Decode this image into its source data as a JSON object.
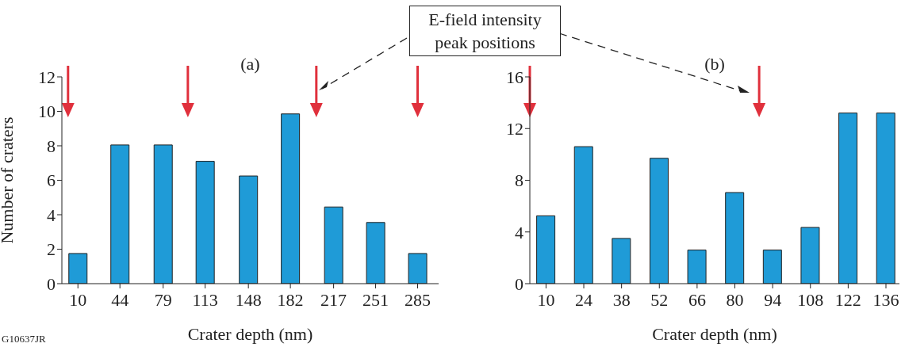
{
  "chart_data": [
    {
      "type": "bar",
      "title": "(a)",
      "xlabel": "Crater depth (nm)",
      "ylabel": "Number of craters",
      "x": [
        10,
        44,
        79,
        113,
        148,
        182,
        217,
        251,
        285
      ],
      "values": [
        1.75,
        8.05,
        8.05,
        7.1,
        6.25,
        9.85,
        4.45,
        3.55,
        1.75
      ],
      "color": "#1f9bd7",
      "xlim": [
        -3,
        302
      ],
      "xticks": [
        10,
        44,
        79,
        113,
        148,
        182,
        217,
        251,
        285
      ],
      "ylim": [
        0,
        12
      ],
      "yticks": [
        0,
        2,
        4,
        6,
        8,
        10,
        12
      ],
      "grid": false,
      "legend": false,
      "ref_lines": [
        {
          "axis": "x",
          "value": 2,
          "color": "#e0303c"
        },
        {
          "axis": "x",
          "value": 99,
          "color": "#e0303c"
        },
        {
          "axis": "x",
          "value": 203,
          "color": "#e0303c"
        },
        {
          "axis": "x",
          "value": 285,
          "color": "#e0303c"
        }
      ],
      "annotations": [
        "E-field intensity peak positions",
        "G10637JR"
      ]
    },
    {
      "type": "bar",
      "title": "(b)",
      "xlabel": "Crater depth (nm)",
      "x": [
        10,
        24,
        38,
        52,
        66,
        80,
        94,
        108,
        122,
        136
      ],
      "values": [
        5.25,
        10.6,
        3.5,
        9.7,
        2.6,
        7.05,
        2.6,
        4.35,
        13.2,
        13.2
      ],
      "color": "#1f9bd7",
      "xlim": [
        4,
        141
      ],
      "xticks": [
        10,
        24,
        38,
        52,
        66,
        80,
        94,
        108,
        122,
        136
      ],
      "ylim": [
        0,
        16
      ],
      "yticks": [
        0,
        4,
        8,
        12,
        16
      ],
      "grid": false,
      "legend": false,
      "ref_lines": [
        {
          "axis": "x",
          "value": 4,
          "color": "#e0303c"
        },
        {
          "axis": "x",
          "value": 89,
          "color": "#e0303c"
        }
      ]
    }
  ]
}
